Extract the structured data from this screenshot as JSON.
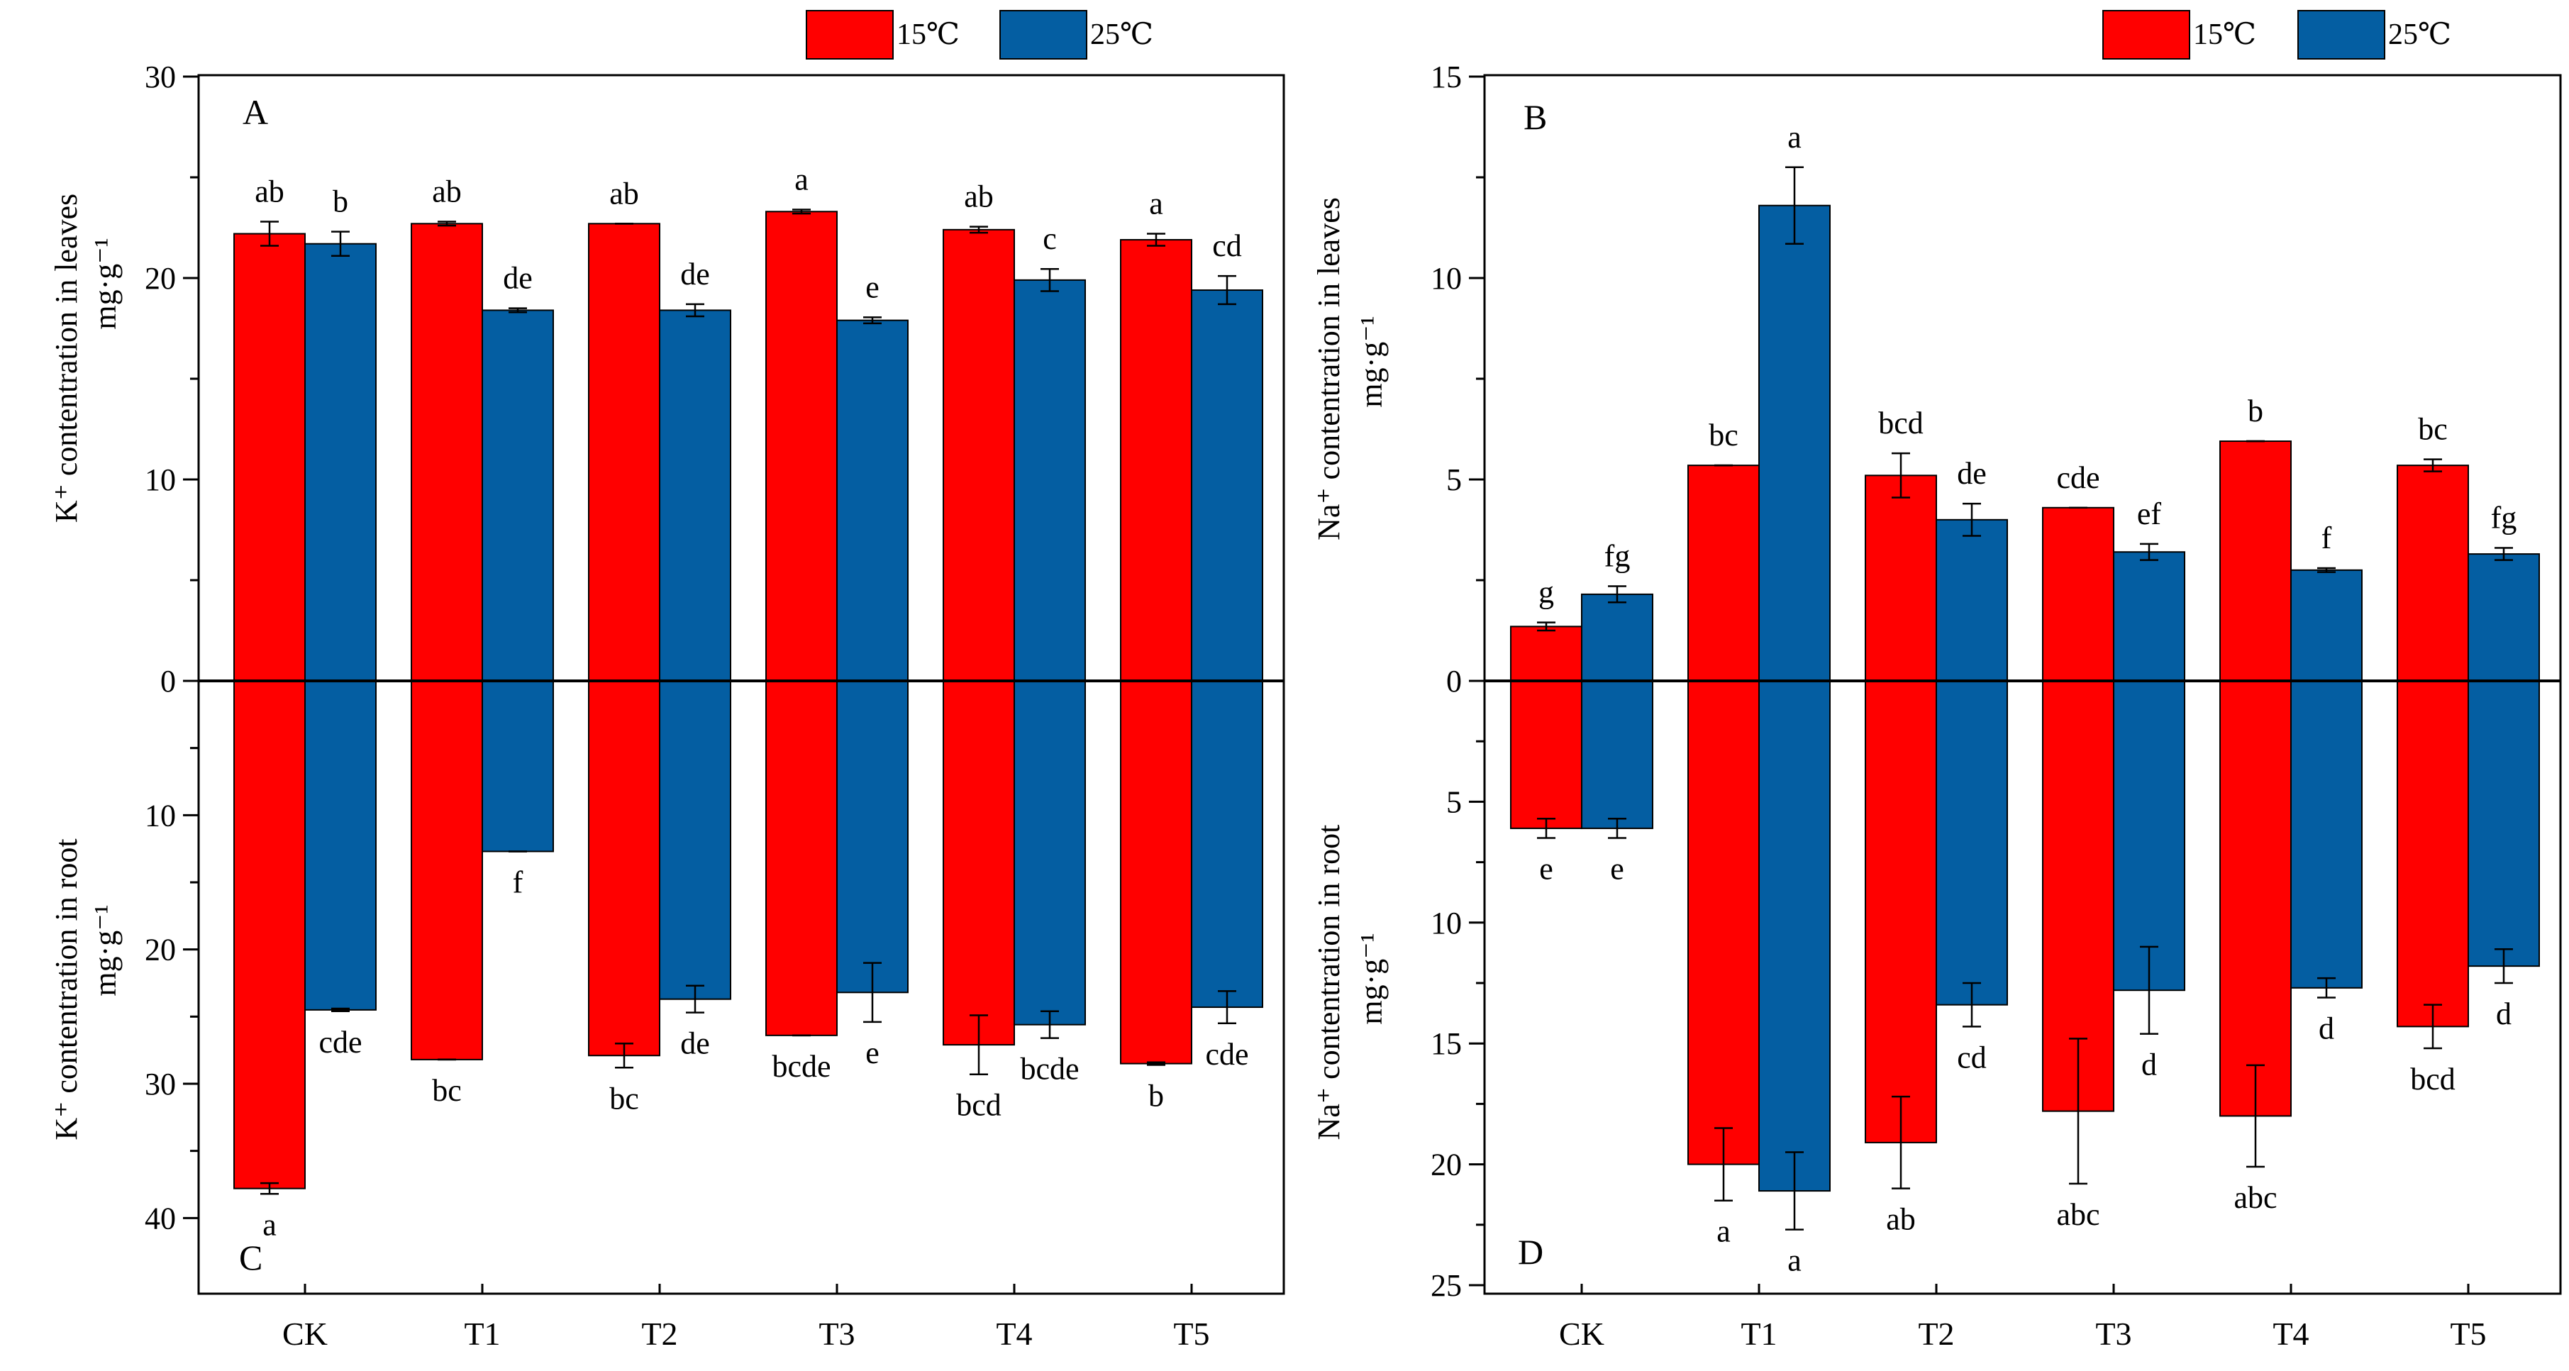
{
  "colors": {
    "c15": "#ff0000",
    "c25": "#045ea2",
    "axis": "#000000"
  },
  "legend": {
    "series_15": "15℃",
    "series_25": "25℃"
  },
  "chart_data": [
    {
      "id": "left",
      "type": "bar",
      "title": "",
      "categories": [
        "CK",
        "T1",
        "T2",
        "T3",
        "T4",
        "T5"
      ],
      "upper": {
        "panel_label": "A",
        "ylabel": "K⁺ contentration in leaves",
        "yunit": "mg·g⁻¹",
        "ylim": [
          0,
          30
        ],
        "ticks": [
          "0",
          "10",
          "20",
          "30"
        ],
        "series": [
          {
            "name": "15℃",
            "values": [
              22.2,
              22.7,
              22.7,
              23.3,
              22.4,
              21.9
            ],
            "errors": [
              0.6,
              0.1,
              0.0,
              0.1,
              0.15,
              0.3
            ],
            "letters": [
              "ab",
              "ab",
              "ab",
              "a",
              "ab",
              "a"
            ]
          },
          {
            "name": "25℃",
            "values": [
              21.7,
              18.4,
              18.4,
              17.9,
              19.9,
              19.4
            ],
            "errors": [
              0.6,
              0.1,
              0.3,
              0.15,
              0.55,
              0.7
            ],
            "letters": [
              "b",
              "de",
              "de",
              "e",
              "c",
              "cd"
            ]
          }
        ]
      },
      "lower": {
        "panel_label": "C",
        "ylabel": "K⁺ contentration in root",
        "yunit": "mg·g⁻¹",
        "ylim": [
          0,
          45
        ],
        "ticks": [
          "10",
          "20",
          "30",
          "40"
        ],
        "series": [
          {
            "name": "15℃",
            "values": [
              37.8,
              28.2,
              27.9,
              26.4,
              27.1,
              28.5
            ],
            "errors": [
              0.4,
              0.0,
              0.9,
              0.0,
              2.2,
              0.1
            ],
            "letters": [
              "a",
              "bc",
              "bc",
              "bcde",
              "bcd",
              "b"
            ]
          },
          {
            "name": "25℃",
            "values": [
              24.5,
              12.7,
              23.7,
              23.2,
              25.6,
              24.3
            ],
            "errors": [
              0.1,
              0.0,
              1.0,
              2.2,
              1.0,
              1.2
            ],
            "letters": [
              "cde",
              "f",
              "de",
              "e",
              "bcde",
              "cde"
            ]
          }
        ]
      }
    },
    {
      "id": "right",
      "type": "bar",
      "title": "",
      "categories": [
        "CK",
        "T1",
        "T2",
        "T3",
        "T4",
        "T5"
      ],
      "upper": {
        "panel_label": "B",
        "ylabel": "Na⁺ contentration in leaves",
        "yunit": "mg·g⁻¹",
        "ylim": [
          0,
          15
        ],
        "ticks": [
          "0",
          "5",
          "10",
          "15"
        ],
        "series": [
          {
            "name": "15℃",
            "values": [
              1.35,
              5.35,
              5.1,
              4.3,
              5.95,
              5.35
            ],
            "errors": [
              0.1,
              0.0,
              0.55,
              0.0,
              0.0,
              0.15
            ],
            "letters": [
              "g",
              "bc",
              "bcd",
              "cde",
              "b",
              "bc"
            ]
          },
          {
            "name": "25℃",
            "values": [
              2.15,
              11.8,
              4.0,
              3.2,
              2.75,
              3.15
            ],
            "errors": [
              0.2,
              0.95,
              0.4,
              0.2,
              0.05,
              0.15
            ],
            "letters": [
              "fg",
              "a",
              "de",
              "ef",
              "f",
              "fg"
            ]
          }
        ]
      },
      "lower": {
        "panel_label": "D",
        "ylabel": "Na⁺ contentration in root",
        "yunit": "mg·g⁻¹",
        "ylim": [
          0,
          25
        ],
        "ticks": [
          "5",
          "10",
          "15",
          "20",
          "25"
        ],
        "series": [
          {
            "name": "15℃",
            "values": [
              6.1,
              20.0,
              19.1,
              17.8,
              18.0,
              14.3
            ],
            "errors": [
              0.4,
              1.5,
              1.9,
              3.0,
              2.1,
              0.9
            ],
            "letters": [
              "e",
              "a",
              "ab",
              "abc",
              "abc",
              "bcd"
            ]
          },
          {
            "name": "25℃",
            "values": [
              6.1,
              21.1,
              13.4,
              12.8,
              12.7,
              11.8
            ],
            "errors": [
              0.4,
              1.6,
              0.9,
              1.8,
              0.4,
              0.7
            ],
            "letters": [
              "e",
              "a",
              "cd",
              "d",
              "d",
              "d"
            ]
          }
        ]
      }
    }
  ]
}
